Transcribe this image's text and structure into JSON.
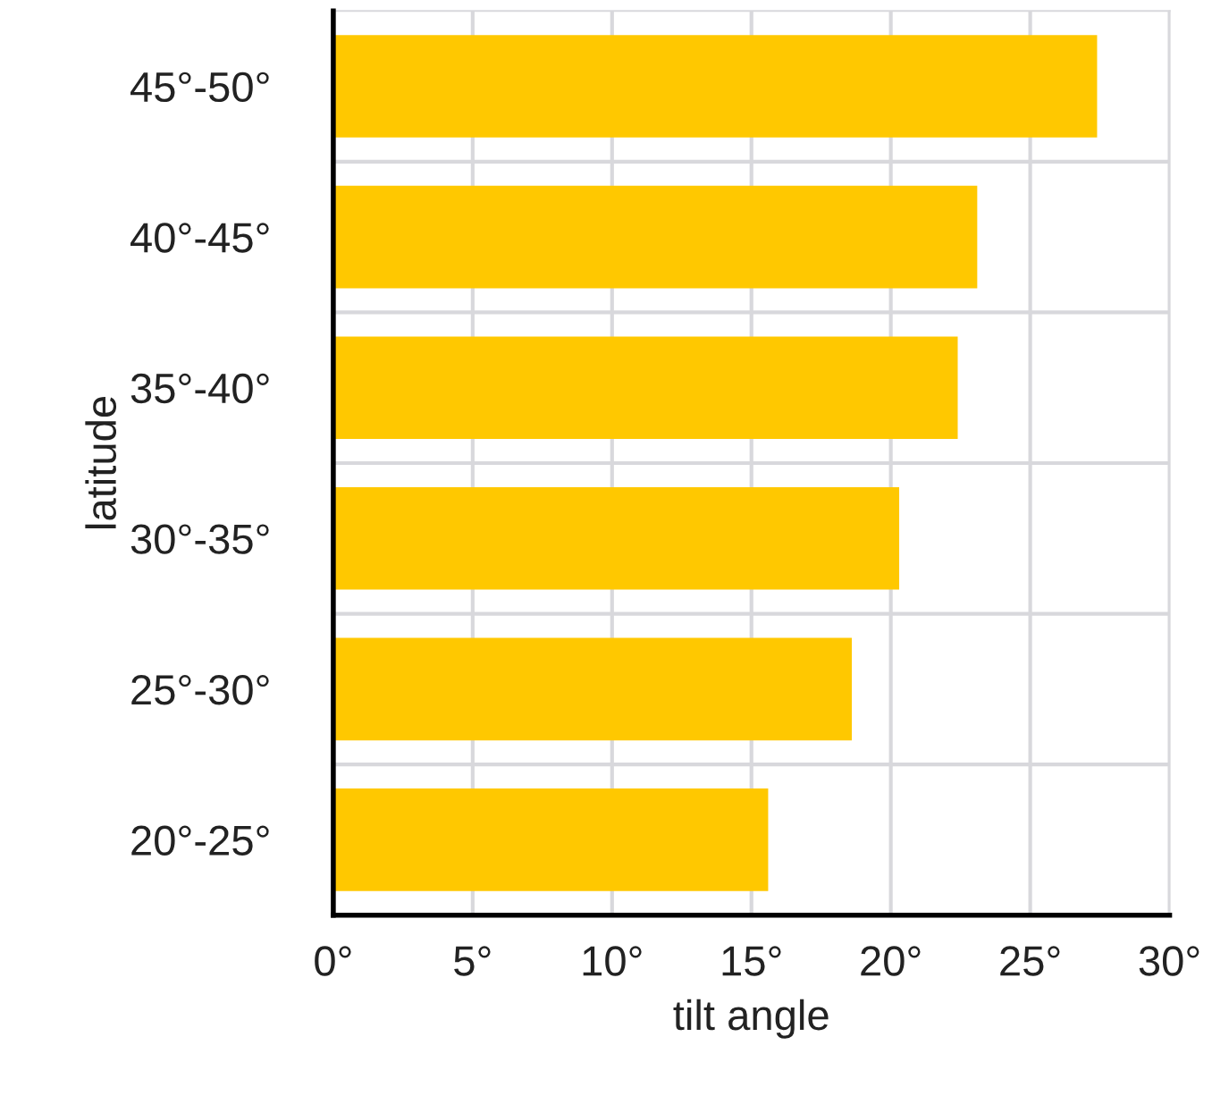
{
  "chart_data": {
    "type": "bar",
    "orientation": "horizontal",
    "xlabel": "tilt angle",
    "ylabel": "latitude",
    "categories": [
      "45°-50°",
      "40°-45°",
      "35°-40°",
      "30°-35°",
      "25°-30°",
      "20°-25°"
    ],
    "values": [
      27.4,
      23.1,
      22.4,
      20.3,
      18.6,
      15.6
    ],
    "color": "#ffc800",
    "xlim": [
      0,
      30
    ],
    "xticks": [
      {
        "value": 0,
        "label": "0°"
      },
      {
        "value": 5,
        "label": "5°"
      },
      {
        "value": 10,
        "label": "10°"
      },
      {
        "value": 15,
        "label": "15°"
      },
      {
        "value": 20,
        "label": "20°"
      },
      {
        "value": 25,
        "label": "25°"
      },
      {
        "value": 30,
        "label": "30°"
      }
    ],
    "grid": true
  }
}
